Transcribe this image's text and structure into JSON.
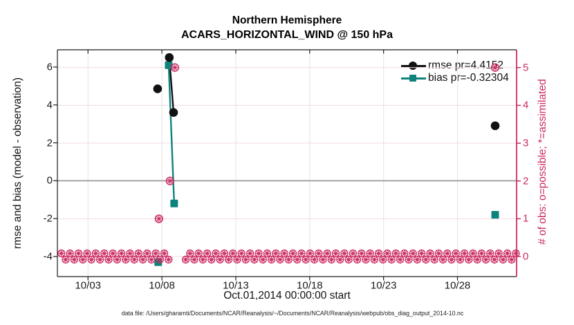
{
  "title": {
    "line1": "Northern Hemisphere",
    "line2": "ACARS_HORIZONTAL_WIND @ 150 hPa"
  },
  "axes": {
    "left": {
      "label": "rmse and bias (model - observation)",
      "ticks": [
        6,
        4,
        2,
        0,
        -2,
        -4
      ],
      "range": [
        -5.06,
        6.91
      ]
    },
    "right": {
      "label": "# of obs: o=possible; *=assimilated",
      "ticks": [
        5,
        4,
        3,
        2,
        1,
        0
      ],
      "range": [
        -0.53,
        5.47
      ]
    },
    "x": {
      "label": "Oct.01,2014 00:00:00 start",
      "tick_labels": [
        "10/03",
        "10/08",
        "10/13",
        "10/18",
        "10/23",
        "10/28"
      ],
      "tick_days": [
        3,
        8,
        13,
        18,
        23,
        28
      ],
      "range_days": [
        0.93,
        32.0
      ]
    }
  },
  "legend": [
    {
      "label": "rmse pr=4.4152",
      "marker": "circle"
    },
    {
      "label": "bias pr=-0.32304",
      "marker": "square"
    }
  ],
  "colors": {
    "rmse": "#111111",
    "bias": "#0e837c",
    "obs_pink": "#cb2a62",
    "h_grid": "#f4d9e2",
    "v_grid": "#e3e3e3",
    "zero_line": "#a6a6a6",
    "axis_black": "#1a1a1a"
  },
  "chart_data": {
    "type": "line",
    "title": "Northern Hemisphere — ACARS_HORIZONTAL_WIND @ 150 hPa",
    "xlabel": "Oct.01,2014 00:00:00 start",
    "ylabel_left": "rmse and bias (model - observation)",
    "ylabel_right": "# of obs: o=possible; *=assimilated",
    "x_unit": "day of October 2014",
    "series": [
      {
        "name": "rmse",
        "axis": "left",
        "marker": "circle",
        "points": [
          [
            7.71,
            4.85
          ],
          [
            8.5,
            6.5
          ],
          [
            8.79,
            3.6
          ],
          [
            30.55,
            2.9
          ]
        ],
        "line_segments": [
          [
            1,
            2
          ]
        ]
      },
      {
        "name": "bias",
        "axis": "left",
        "marker": "square",
        "points": [
          [
            7.75,
            -4.3
          ],
          [
            8.46,
            6.1
          ],
          [
            8.83,
            -1.2
          ],
          [
            30.55,
            -1.8
          ]
        ],
        "line_segments": [
          [
            1,
            2
          ]
        ]
      },
      {
        "name": "obs_count",
        "axis": "right",
        "marker": "circled-asterisk",
        "points": [
          [
            7.8,
            1
          ],
          [
            8.55,
            2
          ],
          [
            8.88,
            5
          ],
          [
            30.55,
            5
          ]
        ]
      }
    ],
    "zero_obs_row": {
      "axis": "right",
      "value": 0,
      "start_day": 1.2,
      "end_day": 32.0,
      "gap_days": [
        8.62,
        9.35
      ]
    },
    "grid": true,
    "legend_position": "top-right"
  },
  "footer": {
    "data_file": "data file: /Users/gharamti/Documents/NCAR/Reanalysis/~/Documents/NCAR/Reanalysis/webpub/obs_diag_output_2014-10.nc"
  }
}
